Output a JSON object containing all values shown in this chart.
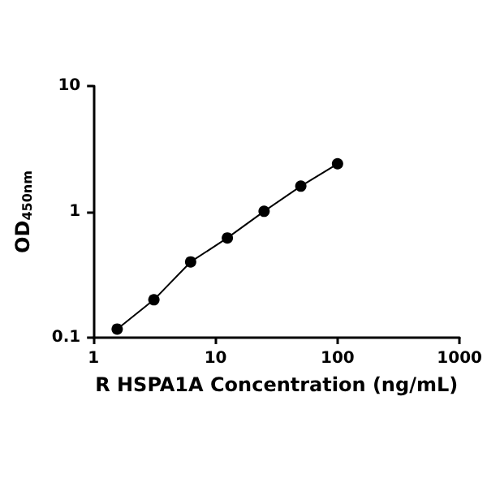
{
  "chart_data": {
    "type": "line",
    "xlabel": "R HSPA1A Concentration (ng/mL)",
    "ylabel": "OD$_{450nm}$",
    "log": "xy",
    "grid": false,
    "marker": "circle",
    "line_style": "solid",
    "x": [
      1.5625,
      3.125,
      6.25,
      12.5,
      25,
      50,
      100
    ],
    "series": [
      {
        "color": "#000000",
        "values": [
          0.117,
          0.2,
          0.4,
          0.62,
          1.01,
          1.6,
          2.41
        ]
      }
    ],
    "xlim": [
      1,
      1000
    ],
    "xticks": [
      1,
      10,
      100,
      1000
    ],
    "ylim": [
      0.1,
      10
    ],
    "yticks": [
      0.1,
      1,
      10
    ]
  }
}
